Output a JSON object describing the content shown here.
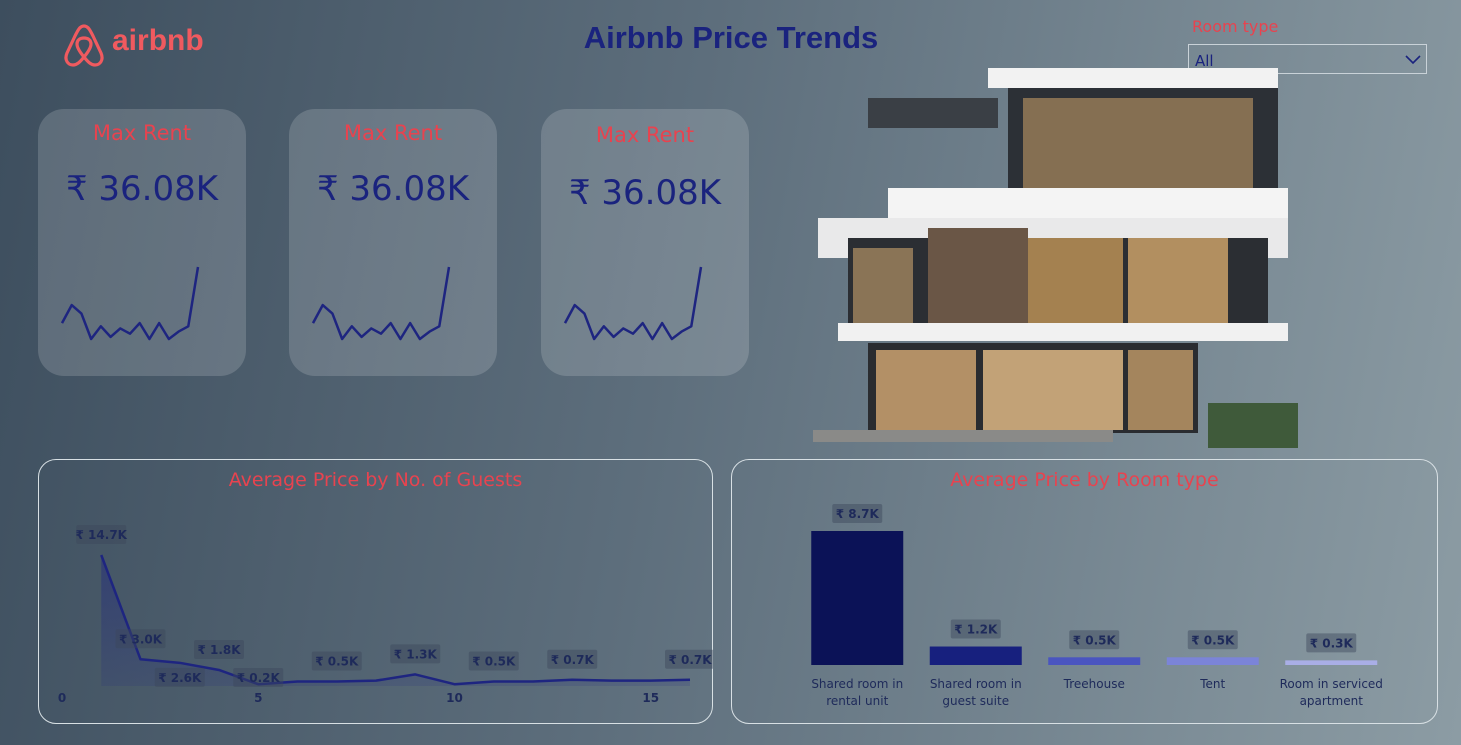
{
  "header": {
    "logo": "airbnb",
    "title": "Airbnb Price Trends"
  },
  "filter": {
    "label": "Room type",
    "value": "All"
  },
  "kpis": [
    {
      "title": "Max Rent",
      "value": "₹ 36.08K"
    },
    {
      "title": "Max Rent",
      "value": "₹ 36.08K"
    },
    {
      "title": "Max Rent",
      "value": "₹ 36.08K"
    }
  ],
  "chart_data": [
    {
      "type": "line",
      "color": "#1e2580",
      "values": [
        20,
        37,
        29,
        5,
        17,
        7,
        15,
        10,
        20,
        5,
        20,
        5,
        12,
        17,
        73
      ]
    },
    {
      "type": "area",
      "title": "Average Price by No. of Guests",
      "color": "#1e2580",
      "x": [
        1,
        2,
        3,
        4,
        5,
        6,
        7,
        8,
        9,
        10,
        11,
        12,
        13,
        14,
        15,
        16
      ],
      "values": [
        14.7,
        3.0,
        2.6,
        1.8,
        0.2,
        0.5,
        0.5,
        0.6,
        1.3,
        0.2,
        0.5,
        0.5,
        0.7,
        0.6,
        0.6,
        0.7
      ],
      "value_labels": [
        "₹ 14.7K",
        "₹ 3.0K",
        "₹ 2.6K",
        "₹ 1.8K",
        "₹ 0.2K",
        null,
        "₹ 0.5K",
        null,
        "₹ 1.3K",
        null,
        "₹ 0.5K",
        null,
        "₹ 0.7K",
        null,
        null,
        "₹ 0.7K"
      ],
      "xlim": [
        0,
        16
      ],
      "xticks": [
        0,
        5,
        10,
        15
      ]
    },
    {
      "type": "bar",
      "title": "Average Price by Room type",
      "categories": [
        "Shared room in rental unit",
        "Shared room in guest suite",
        "Treehouse",
        "Tent",
        "Room in serviced apartment"
      ],
      "values": [
        8.7,
        1.2,
        0.5,
        0.5,
        0.3
      ],
      "value_labels": [
        "₹ 8.7K",
        "₹ 1.2K",
        "₹ 0.5K",
        "₹ 0.5K",
        "₹ 0.3K"
      ],
      "colors": [
        "#0b1257",
        "#17207e",
        "#4a55c0",
        "#7b84d8",
        "#a9aee6"
      ]
    }
  ]
}
